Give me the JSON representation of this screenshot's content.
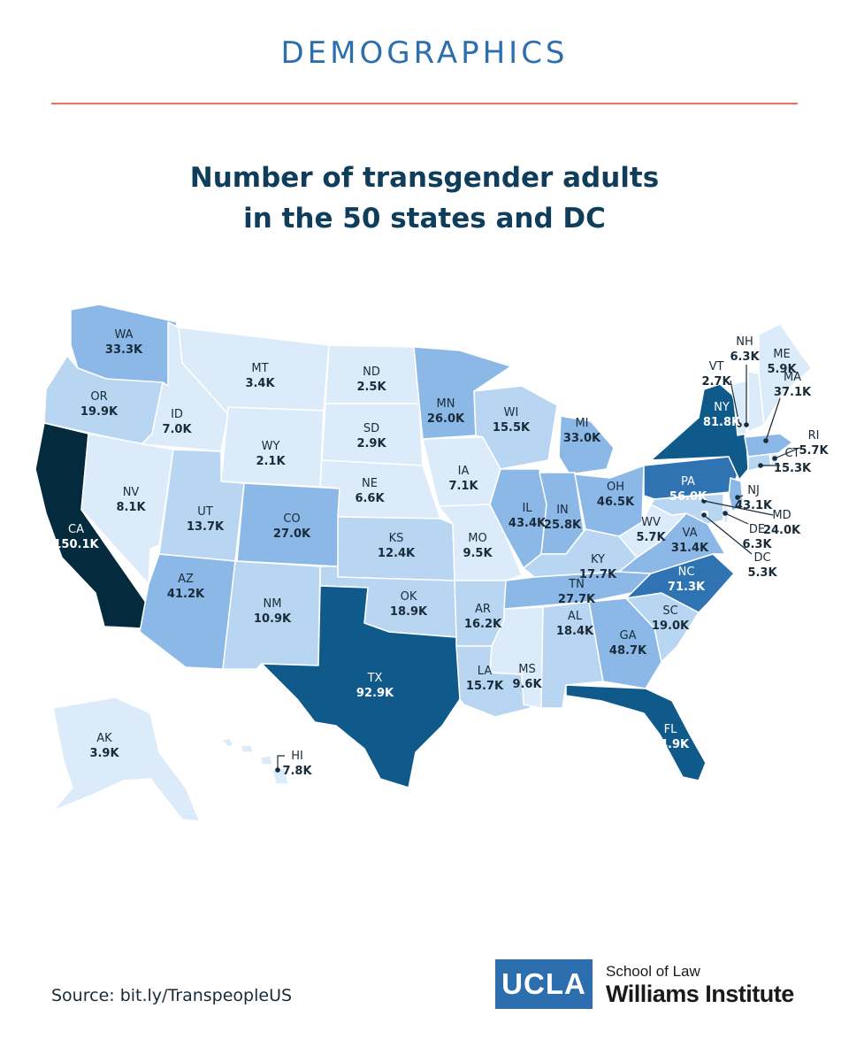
{
  "header": {
    "section": "DEMOGRAPHICS",
    "title_line1": "Number of transgender adults",
    "title_line2": "in the 50 states and DC"
  },
  "colors": {
    "accent_line": "#e8735a",
    "section_text": "#2d6fae",
    "title_text": "#0f3d5c",
    "bin_lightest": "#dcebfa",
    "bin_light": "#b8d5f1",
    "bin_mid": "#8cb8e8",
    "bin_dark": "#2f73b3",
    "bin_darker": "#0f5a8a",
    "bin_darkest": "#032a3d",
    "border": "#ffffff"
  },
  "chart_data": {
    "type": "map",
    "title": "Number of transgender adults in the 50 states and DC",
    "states": [
      {
        "abbr": "WA",
        "value": "33.3K"
      },
      {
        "abbr": "OR",
        "value": "19.9K"
      },
      {
        "abbr": "CA",
        "value": "150.1K"
      },
      {
        "abbr": "ID",
        "value": "7.0K"
      },
      {
        "abbr": "NV",
        "value": "8.1K"
      },
      {
        "abbr": "MT",
        "value": "3.4K"
      },
      {
        "abbr": "WY",
        "value": "2.1K"
      },
      {
        "abbr": "UT",
        "value": "13.7K"
      },
      {
        "abbr": "AZ",
        "value": "41.2K"
      },
      {
        "abbr": "CO",
        "value": "27.0K"
      },
      {
        "abbr": "NM",
        "value": "10.9K"
      },
      {
        "abbr": "ND",
        "value": "2.5K"
      },
      {
        "abbr": "SD",
        "value": "2.9K"
      },
      {
        "abbr": "NE",
        "value": "6.6K"
      },
      {
        "abbr": "KS",
        "value": "12.4K"
      },
      {
        "abbr": "OK",
        "value": "18.9K"
      },
      {
        "abbr": "TX",
        "value": "92.9K"
      },
      {
        "abbr": "MN",
        "value": "26.0K"
      },
      {
        "abbr": "IA",
        "value": "7.1K"
      },
      {
        "abbr": "MO",
        "value": "9.5K"
      },
      {
        "abbr": "AR",
        "value": "16.2K"
      },
      {
        "abbr": "LA",
        "value": "15.7K"
      },
      {
        "abbr": "WI",
        "value": "15.5K"
      },
      {
        "abbr": "IL",
        "value": "43.4K"
      },
      {
        "abbr": "MI",
        "value": "33.0K"
      },
      {
        "abbr": "IN",
        "value": "25.8K"
      },
      {
        "abbr": "OH",
        "value": "46.5K"
      },
      {
        "abbr": "KY",
        "value": "17.7K"
      },
      {
        "abbr": "TN",
        "value": "27.7K"
      },
      {
        "abbr": "MS",
        "value": "9.6K"
      },
      {
        "abbr": "AL",
        "value": "18.4K"
      },
      {
        "abbr": "GA",
        "value": "48.7K"
      },
      {
        "abbr": "FL",
        "value": "94.9K"
      },
      {
        "abbr": "SC",
        "value": "19.0K"
      },
      {
        "abbr": "NC",
        "value": "71.3K"
      },
      {
        "abbr": "VA",
        "value": "31.4K"
      },
      {
        "abbr": "WV",
        "value": "5.7K"
      },
      {
        "abbr": "PA",
        "value": "56.0K"
      },
      {
        "abbr": "NY",
        "value": "81.8K"
      },
      {
        "abbr": "VT",
        "value": "2.7K"
      },
      {
        "abbr": "NH",
        "value": "6.3K"
      },
      {
        "abbr": "ME",
        "value": "5.9K"
      },
      {
        "abbr": "MA",
        "value": "37.1K"
      },
      {
        "abbr": "RI",
        "value": "5.7K"
      },
      {
        "abbr": "CT",
        "value": "15.3K"
      },
      {
        "abbr": "NJ",
        "value": "43.1K"
      },
      {
        "abbr": "MD",
        "value": "24.0K"
      },
      {
        "abbr": "DE",
        "value": "6.3K"
      },
      {
        "abbr": "DC",
        "value": "5.3K"
      },
      {
        "abbr": "AK",
        "value": "3.9K"
      },
      {
        "abbr": "HI",
        "value": "7.8K"
      }
    ]
  },
  "footer": {
    "source": "Source: bit.ly/TranspeopleUS",
    "logo_mark": "UCLA",
    "logo_line1": "School of Law",
    "logo_line2": "Williams Institute"
  }
}
